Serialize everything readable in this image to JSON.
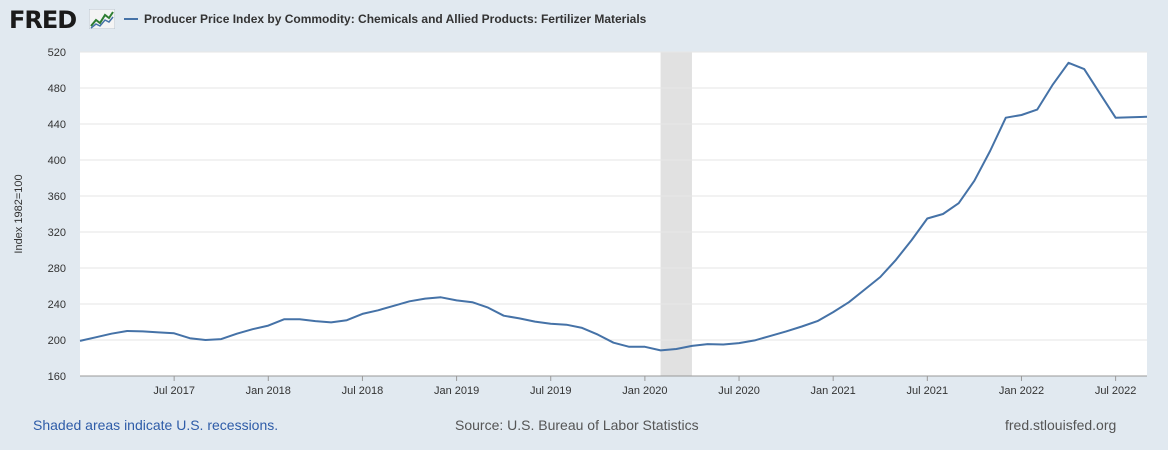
{
  "header": {
    "logo_text": "FRED",
    "logo_icon": "line-graph-icon"
  },
  "footer": {
    "recession_note": "Shaded areas indicate U.S. recessions.",
    "source": "Source: U.S. Bureau of Labor Statistics",
    "site": "fred.stlouisfed.org"
  },
  "chart_data": {
    "type": "line",
    "title": "",
    "xlabel": "",
    "ylabel": "Index 1982=100",
    "ylim": [
      160,
      520
    ],
    "yticks": [
      160,
      200,
      240,
      280,
      320,
      360,
      400,
      440,
      480,
      520
    ],
    "xlim": [
      "2017-01",
      "2022-09"
    ],
    "xticks": [
      {
        "date": "2017-07",
        "label": "Jul 2017"
      },
      {
        "date": "2018-01",
        "label": "Jan 2018"
      },
      {
        "date": "2018-07",
        "label": "Jul 2018"
      },
      {
        "date": "2019-01",
        "label": "Jan 2019"
      },
      {
        "date": "2019-07",
        "label": "Jul 2019"
      },
      {
        "date": "2020-01",
        "label": "Jan 2020"
      },
      {
        "date": "2020-07",
        "label": "Jul 2020"
      },
      {
        "date": "2021-01",
        "label": "Jan 2021"
      },
      {
        "date": "2021-07",
        "label": "Jul 2021"
      },
      {
        "date": "2022-01",
        "label": "Jan 2022"
      },
      {
        "date": "2022-07",
        "label": "Jul 2022"
      }
    ],
    "grid": true,
    "legend_position": "top-left",
    "recessions": [
      {
        "start": "2020-02",
        "end": "2020-04"
      }
    ],
    "colors": {
      "series": "#4572a7",
      "recession": "#e1e1e1",
      "grid": "#e6e6e6"
    },
    "series": [
      {
        "name": "Producer Price Index by Commodity: Chemicals and Allied Products: Fertilizer Materials",
        "x": [
          "2017-01",
          "2017-02",
          "2017-03",
          "2017-04",
          "2017-05",
          "2017-06",
          "2017-07",
          "2017-08",
          "2017-09",
          "2017-10",
          "2017-11",
          "2017-12",
          "2018-01",
          "2018-02",
          "2018-03",
          "2018-04",
          "2018-05",
          "2018-06",
          "2018-07",
          "2018-08",
          "2018-09",
          "2018-10",
          "2018-11",
          "2018-12",
          "2019-01",
          "2019-02",
          "2019-03",
          "2019-04",
          "2019-05",
          "2019-06",
          "2019-07",
          "2019-08",
          "2019-09",
          "2019-10",
          "2019-11",
          "2019-12",
          "2020-01",
          "2020-02",
          "2020-03",
          "2020-04",
          "2020-05",
          "2020-06",
          "2020-07",
          "2020-08",
          "2020-09",
          "2020-10",
          "2020-11",
          "2020-12",
          "2021-01",
          "2021-02",
          "2021-03",
          "2021-04",
          "2021-05",
          "2021-06",
          "2021-07",
          "2021-08",
          "2021-09",
          "2021-10",
          "2021-11",
          "2021-12",
          "2022-01",
          "2022-02",
          "2022-03",
          "2022-04",
          "2022-05",
          "2022-06",
          "2022-07",
          "2022-08",
          "2022-09"
        ],
        "values": [
          199,
          203,
          207,
          210,
          209.5,
          208.5,
          207.5,
          202,
          200,
          201,
          207,
          212,
          216,
          223,
          223,
          221,
          219.5,
          222,
          229,
          233,
          238,
          243,
          246,
          247.5,
          244,
          242,
          236,
          227,
          224,
          220.5,
          218,
          217,
          213.5,
          206,
          197,
          192.5,
          192.5,
          188.5,
          190,
          193.5,
          195.5,
          195,
          196.5,
          199.5,
          204.5,
          209.5,
          215,
          221,
          231,
          242,
          256,
          270,
          289,
          311,
          335,
          340,
          352,
          377,
          410,
          447,
          450,
          456,
          484,
          508,
          501,
          474,
          447,
          447.5,
          448
        ]
      }
    ]
  }
}
